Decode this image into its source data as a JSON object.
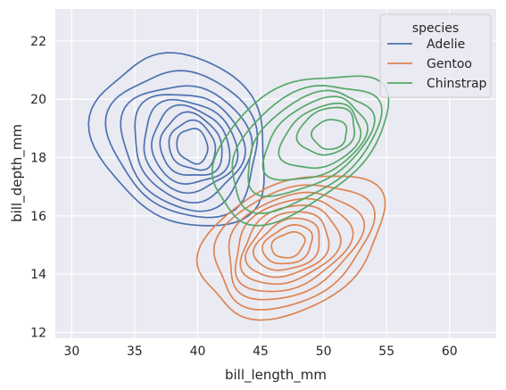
{
  "chart_data": {
    "type": "kde-contour",
    "xlabel": "bill_length_mm",
    "ylabel": "bill_depth_mm",
    "xlim": [
      28.7,
      63.7
    ],
    "ylim": [
      11.8,
      23.1
    ],
    "xticks": [
      30,
      35,
      40,
      45,
      50,
      55,
      60
    ],
    "yticks": [
      12,
      14,
      16,
      18,
      20,
      22
    ],
    "grid": true,
    "legend": {
      "title": "species",
      "position": "top-right"
    },
    "series": [
      {
        "name": "Adelie",
        "color": "#4c72b0",
        "center": [
          39.0,
          18.4
        ],
        "levels": [
          {
            "rx": 6.5,
            "ry": 3.1,
            "dx": -0.2,
            "dy": 0.2,
            "rot": 30
          },
          {
            "rx": 5.6,
            "ry": 2.6,
            "dx": 0.0,
            "dy": 0.1,
            "rot": 30
          },
          {
            "rx": 4.9,
            "ry": 2.2,
            "dx": 0.1,
            "dy": 0.0,
            "rot": 28
          },
          {
            "rx": 4.2,
            "ry": 1.9,
            "dx": 0.2,
            "dy": 0.0,
            "rot": 26
          },
          {
            "rx": 3.6,
            "ry": 1.6,
            "dx": 0.3,
            "dy": 0.0,
            "rot": 24
          },
          {
            "rx": 3.0,
            "ry": 1.35,
            "dx": 0.4,
            "dy": 0.0,
            "rot": 22
          },
          {
            "rx": 2.4,
            "ry": 1.1,
            "dx": 0.5,
            "dy": 0.0,
            "rot": 20
          },
          {
            "rx": 1.8,
            "ry": 0.85,
            "dx": 0.6,
            "dy": 0.0,
            "rot": 18
          },
          {
            "rx": 1.2,
            "ry": 0.6,
            "dx": 0.6,
            "dy": 0.0,
            "rot": 15
          }
        ]
      },
      {
        "name": "Gentoo",
        "color": "#dd8452",
        "center": [
          47.5,
          15.0
        ],
        "levels": [
          {
            "rx": 8.0,
            "ry": 2.1,
            "dx": 0.0,
            "dy": 0.0,
            "rot": 35
          },
          {
            "rx": 6.8,
            "ry": 1.85,
            "dx": 0.0,
            "dy": 0.0,
            "rot": 35
          },
          {
            "rx": 5.8,
            "ry": 1.6,
            "dx": 0.0,
            "dy": 0.0,
            "rot": 35
          },
          {
            "rx": 5.0,
            "ry": 1.4,
            "dx": -0.1,
            "dy": 0.0,
            "rot": 35
          },
          {
            "rx": 4.2,
            "ry": 1.2,
            "dx": -0.2,
            "dy": 0.0,
            "rot": 35
          },
          {
            "rx": 3.5,
            "ry": 1.0,
            "dx": -0.3,
            "dy": 0.0,
            "rot": 34
          },
          {
            "rx": 2.8,
            "ry": 0.8,
            "dx": -0.3,
            "dy": 0.0,
            "rot": 33
          },
          {
            "rx": 2.1,
            "ry": 0.6,
            "dx": -0.3,
            "dy": 0.0,
            "rot": 32
          },
          {
            "rx": 1.4,
            "ry": 0.4,
            "dx": -0.3,
            "dy": 0.0,
            "rot": 30
          }
        ]
      },
      {
        "name": "Chinstrap",
        "color": "#55a868",
        "center": [
          49.0,
          18.4
        ],
        "levels": [
          {
            "rx": 8.2,
            "ry": 1.9,
            "dx": -1.0,
            "dy": 0.0,
            "rot": 42
          },
          {
            "rx": 7.0,
            "ry": 1.6,
            "dx": -0.6,
            "dy": 0.0,
            "rot": 42
          },
          {
            "rx": 5.8,
            "ry": 1.35,
            "dx": -0.2,
            "dy": 0.1,
            "rot": 40
          },
          {
            "rx": 4.6,
            "ry": 1.15,
            "dx": 0.3,
            "dy": 0.2,
            "rot": 38
          },
          {
            "rx": 3.5,
            "ry": 0.95,
            "dx": 0.8,
            "dy": 0.3,
            "rot": 36
          },
          {
            "rx": 2.4,
            "ry": 0.75,
            "dx": 1.3,
            "dy": 0.5,
            "rot": 34
          },
          {
            "rx": 1.4,
            "ry": 0.5,
            "dx": 1.5,
            "dy": 0.4,
            "rot": 30
          }
        ]
      }
    ]
  }
}
